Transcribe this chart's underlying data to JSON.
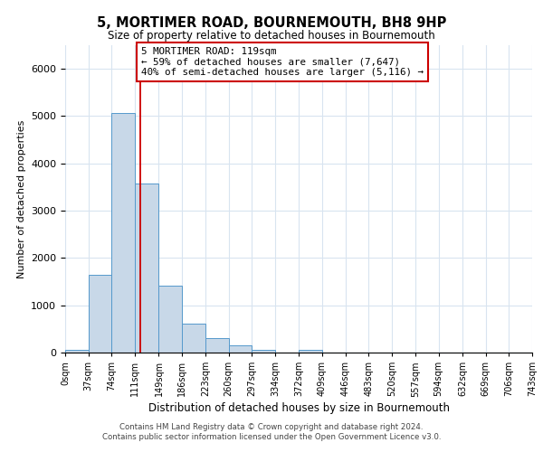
{
  "title": "5, MORTIMER ROAD, BOURNEMOUTH, BH8 9HP",
  "subtitle": "Size of property relative to detached houses in Bournemouth",
  "xlabel": "Distribution of detached houses by size in Bournemouth",
  "ylabel": "Number of detached properties",
  "bin_edges": [
    0,
    37,
    74,
    111,
    149,
    186,
    223,
    260,
    297,
    334,
    372,
    409,
    446,
    483,
    520,
    557,
    594,
    632,
    669,
    706,
    743
  ],
  "bar_heights": [
    60,
    1650,
    5070,
    3580,
    1420,
    610,
    300,
    150,
    60,
    0,
    50,
    0,
    0,
    0,
    0,
    0,
    0,
    0,
    0,
    0
  ],
  "bar_color": "#c8d8e8",
  "bar_edgecolor": "#5599cc",
  "grid_color": "#d8e4f0",
  "property_line_x": 119,
  "property_line_color": "#cc0000",
  "annotation_text": "5 MORTIMER ROAD: 119sqm\n← 59% of detached houses are smaller (7,647)\n40% of semi-detached houses are larger (5,116) →",
  "annotation_box_edgecolor": "#cc0000",
  "annotation_box_facecolor": "#ffffff",
  "ylim": [
    0,
    6500
  ],
  "tick_labels": [
    "0sqm",
    "37sqm",
    "74sqm",
    "111sqm",
    "149sqm",
    "186sqm",
    "223sqm",
    "260sqm",
    "297sqm",
    "334sqm",
    "372sqm",
    "409sqm",
    "446sqm",
    "483sqm",
    "520sqm",
    "557sqm",
    "594sqm",
    "632sqm",
    "669sqm",
    "706sqm",
    "743sqm"
  ],
  "footer_line1": "Contains HM Land Registry data © Crown copyright and database right 2024.",
  "footer_line2": "Contains public sector information licensed under the Open Government Licence v3.0."
}
